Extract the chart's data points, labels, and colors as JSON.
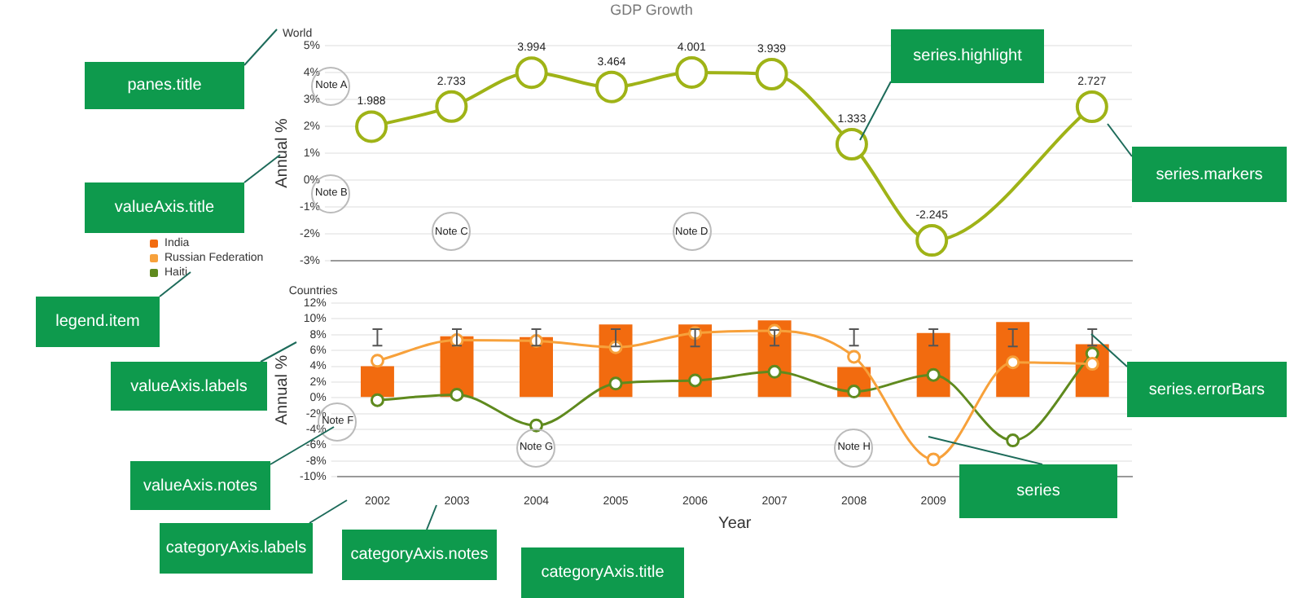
{
  "chart_data": [
    {
      "type": "line",
      "title": "GDP Growth",
      "subtitle": "World",
      "ylabel": "Annual %",
      "categories": [
        "2002",
        "2003",
        "2004",
        "2005",
        "2006",
        "2007",
        "2008",
        "2009",
        "2010",
        "2011"
      ],
      "series": [
        {
          "color": "#9fb317",
          "values": [
            1.988,
            2.733,
            3.994,
            3.464,
            4.001,
            3.939,
            1.333,
            -2.245,
            null,
            2.727
          ]
        }
      ],
      "ylim": [
        -3,
        5
      ],
      "yticks": [
        {
          "value": -3,
          "label": "-3%"
        },
        {
          "value": -2,
          "label": "-2%"
        },
        {
          "value": -1,
          "label": "-1%"
        },
        {
          "value": 0,
          "label": "0%"
        },
        {
          "value": 1,
          "label": "1%"
        },
        {
          "value": 2,
          "label": "2%"
        },
        {
          "value": 3,
          "label": "3%"
        },
        {
          "value": 4,
          "label": "4%"
        },
        {
          "value": 5,
          "label": "5%"
        }
      ],
      "grid": "y",
      "tick_labels": "y",
      "marker": "circle",
      "data_labels": true,
      "annotations": [
        "Note A",
        "Note B",
        "Note C",
        "Note D",
        "panes.title",
        "valueAxis.title",
        "series.highlight",
        "series.markers"
      ]
    },
    {
      "type": "bar",
      "subtitle": "Countries",
      "xlabel": "Year",
      "ylabel": "Annual %",
      "series": [
        {
          "name": "India",
          "type": "bar",
          "color": "#f26b0f",
          "values": [
            4.0,
            7.8,
            7.7,
            9.3,
            9.3,
            9.8,
            3.9,
            8.2,
            9.6,
            6.8
          ],
          "errors": [
            [
              6.6,
              8.7
            ],
            [
              6.6,
              8.7
            ],
            [
              6.6,
              8.7
            ],
            [
              6.5,
              8.7
            ],
            [
              6.5,
              8.7
            ],
            [
              6.6,
              8.6
            ],
            [
              6.6,
              8.7
            ],
            [
              6.6,
              8.7
            ],
            [
              6.5,
              8.7
            ],
            [
              6.6,
              8.7
            ]
          ]
        },
        {
          "name": "Russian Federation",
          "type": "line",
          "color": "#f7a13b",
          "values": [
            4.7,
            7.3,
            7.2,
            6.4,
            8.2,
            8.5,
            5.2,
            -7.8,
            4.5,
            4.3
          ]
        },
        {
          "name": "Haiti",
          "type": "line",
          "color": "#5f8a1e",
          "values": [
            -0.3,
            0.4,
            -3.5,
            1.8,
            2.2,
            3.3,
            0.8,
            2.9,
            -5.4,
            5.6
          ]
        }
      ],
      "ylim": [
        -10,
        12
      ],
      "yticks": [
        {
          "value": -10,
          "label": "-10%"
        },
        {
          "value": -8,
          "label": "-8%"
        },
        {
          "value": -6,
          "label": "-6%"
        },
        {
          "value": -4,
          "label": "-4%"
        },
        {
          "value": -2,
          "label": "-2%"
        },
        {
          "value": 0,
          "label": "0%"
        },
        {
          "value": 2,
          "label": "2%"
        },
        {
          "value": 4,
          "label": "4%"
        },
        {
          "value": 6,
          "label": "6%"
        },
        {
          "value": 8,
          "label": "8%"
        },
        {
          "value": 10,
          "label": "10%"
        },
        {
          "value": 12,
          "label": "12%"
        }
      ],
      "grid": "y",
      "legend": "left",
      "categories": [
        "2002",
        "2003",
        "2004",
        "2005",
        "2006",
        "2007",
        "2008",
        "2009",
        null,
        null
      ],
      "marker": "circle",
      "annotations": [
        "Note F",
        "Note G",
        "Note H",
        "legend.item",
        "valueAxis.labels",
        "valueAxis.notes",
        "categoryAxis.labels",
        "categoryAxis.notes",
        "categoryAxis.title",
        "series.errorBars",
        "series"
      ]
    }
  ]
}
